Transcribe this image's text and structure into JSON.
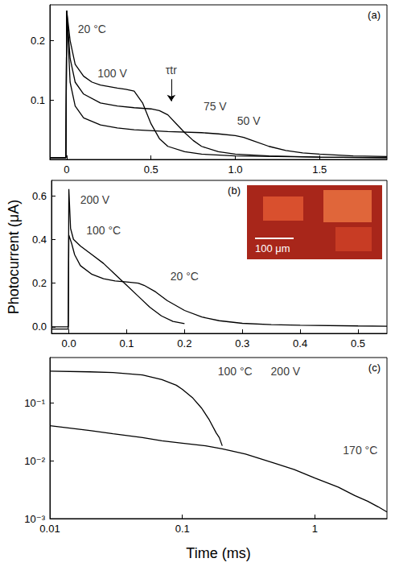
{
  "chart_data": [
    {
      "type": "line",
      "panel": "(a)",
      "color": "#000000",
      "grid": false,
      "xlim": [
        -0.1,
        1.9
      ],
      "xticks": [
        0,
        0.5,
        {
          "value": 1,
          "label": "1.0"
        },
        1.5
      ],
      "ylim": [
        0,
        0.26
      ],
      "yticks": [
        0.1,
        0.2
      ],
      "series": [
        {
          "name": "100 V",
          "x": [
            -0.1,
            -0.005,
            0,
            0.02,
            0.05,
            0.1,
            0.15,
            0.2,
            0.3,
            0.35,
            0.4,
            0.45,
            0.5,
            0.55,
            0.6,
            0.7,
            0.8,
            1.0,
            1.5,
            1.9
          ],
          "values": [
            0.003,
            0.003,
            0.25,
            0.2,
            0.16,
            0.14,
            0.13,
            0.125,
            0.12,
            0.118,
            0.115,
            0.095,
            0.06,
            0.035,
            0.022,
            0.013,
            0.009,
            0.006,
            0.004,
            0.003
          ]
        },
        {
          "name": "75 V",
          "x": [
            -0.1,
            -0.005,
            0,
            0.02,
            0.05,
            0.1,
            0.2,
            0.3,
            0.4,
            0.5,
            0.55,
            0.6,
            0.65,
            0.7,
            0.75,
            0.8,
            0.9,
            1.0,
            1.2,
            1.5,
            1.9
          ],
          "values": [
            0.003,
            0.003,
            0.25,
            0.17,
            0.13,
            0.11,
            0.095,
            0.09,
            0.087,
            0.085,
            0.082,
            0.075,
            0.06,
            0.045,
            0.032,
            0.022,
            0.013,
            0.009,
            0.006,
            0.004,
            0.003
          ]
        },
        {
          "name": "50 V",
          "x": [
            -0.1,
            -0.005,
            0,
            0.02,
            0.05,
            0.1,
            0.2,
            0.3,
            0.4,
            0.6,
            0.8,
            0.9,
            1.0,
            1.05,
            1.1,
            1.2,
            1.3,
            1.4,
            1.5,
            1.7,
            1.9
          ],
          "values": [
            0.003,
            0.003,
            0.25,
            0.13,
            0.09,
            0.07,
            0.058,
            0.053,
            0.05,
            0.047,
            0.045,
            0.043,
            0.04,
            0.037,
            0.032,
            0.022,
            0.015,
            0.011,
            0.009,
            0.006,
            0.005
          ]
        }
      ],
      "annotations": [
        {
          "text": "20 °C",
          "x": 0.15,
          "y": 0.22
        },
        {
          "text": "100 V",
          "x": 0.27,
          "y": 0.145
        },
        {
          "text": "75 V",
          "x": 0.88,
          "y": 0.09
        },
        {
          "text": "50 V",
          "x": 1.08,
          "y": 0.065
        },
        {
          "text": "τtr",
          "x": 0.62,
          "y": 0.15,
          "arrow": [
            [
              0.62,
              0.135
            ],
            [
              0.62,
              0.098
            ]
          ]
        }
      ]
    },
    {
      "type": "line",
      "panel": "(b)",
      "color": "#000000",
      "grid": false,
      "ylabel": "Photocurrent (μA)",
      "inset_label": "100 μm",
      "xlim": [
        -0.03,
        0.55
      ],
      "xticks": [
        {
          "value": 0,
          "label": "0.0"
        },
        0.1,
        0.2,
        0.3,
        0.4,
        0.5
      ],
      "ylim": [
        -0.03,
        0.67
      ],
      "yticks": [
        {
          "value": 0,
          "label": "0.0"
        },
        0.2,
        0.4,
        0.6
      ],
      "series": [
        {
          "name": "20 °C",
          "x": [
            -0.03,
            -0.001,
            0,
            0.005,
            0.01,
            0.02,
            0.04,
            0.06,
            0.08,
            0.1,
            0.12,
            0.13,
            0.15,
            0.17,
            0.2,
            0.23,
            0.26,
            0.3,
            0.35,
            0.4,
            0.5,
            0.55
          ],
          "values": [
            0,
            0,
            0.42,
            0.38,
            0.33,
            0.28,
            0.24,
            0.22,
            0.21,
            0.205,
            0.2,
            0.19,
            0.16,
            0.12,
            0.075,
            0.045,
            0.028,
            0.016,
            0.01,
            0.007,
            0.004,
            0.003
          ]
        },
        {
          "name": "100 °C",
          "x": [
            -0.03,
            -0.001,
            0,
            0.003,
            0.008,
            0.02,
            0.04,
            0.06,
            0.08,
            0.1,
            0.12,
            0.14,
            0.16,
            0.18,
            0.2
          ],
          "values": [
            -0.01,
            -0.01,
            0.63,
            0.45,
            0.4,
            0.37,
            0.33,
            0.29,
            0.24,
            0.19,
            0.14,
            0.09,
            0.05,
            0.025,
            0.015
          ]
        }
      ],
      "annotations": [
        {
          "text": "200 V",
          "x": 0.045,
          "y": 0.58
        },
        {
          "text": "100 °C",
          "x": 0.06,
          "y": 0.44
        },
        {
          "text": "20 °C",
          "x": 0.2,
          "y": 0.23
        }
      ]
    },
    {
      "type": "line",
      "panel": "(c)",
      "color": "#000000",
      "grid": false,
      "log": true,
      "xlabel": "Time (ms)",
      "xlim": [
        0.01,
        3.5
      ],
      "xticks": [
        0.01,
        0.1,
        1
      ],
      "ylim": [
        0.001,
        0.6
      ],
      "yticks": [
        {
          "value": 0.001,
          "label": "10⁻³"
        },
        {
          "value": 0.01,
          "label": "10⁻²"
        },
        {
          "value": 0.1,
          "label": "10⁻¹"
        }
      ],
      "series": [
        {
          "name": "100 °C",
          "x": [
            0.01,
            0.02,
            0.03,
            0.05,
            0.07,
            0.09,
            0.1,
            0.12,
            0.14,
            0.16,
            0.18,
            0.19,
            0.2
          ],
          "values": [
            0.35,
            0.34,
            0.33,
            0.3,
            0.25,
            0.2,
            0.17,
            0.12,
            0.08,
            0.05,
            0.03,
            0.025,
            0.018
          ]
        },
        {
          "name": "170 °C",
          "x": [
            0.01,
            0.02,
            0.03,
            0.05,
            0.07,
            0.1,
            0.15,
            0.2,
            0.3,
            0.5,
            0.7,
            1,
            1.5,
            2,
            2.5,
            3,
            3.5
          ],
          "values": [
            0.04,
            0.033,
            0.029,
            0.025,
            0.022,
            0.02,
            0.018,
            0.016,
            0.013,
            0.009,
            0.007,
            0.005,
            0.0035,
            0.0025,
            0.002,
            0.0016,
            0.0013
          ]
        }
      ],
      "annotations": [
        {
          "text": "100 °C",
          "x": 0.25,
          "y": 0.35
        },
        {
          "text": "200 V",
          "x": 0.6,
          "y": 0.35
        },
        {
          "text": "170 °C",
          "x": 2.2,
          "y": 0.015
        }
      ]
    }
  ]
}
